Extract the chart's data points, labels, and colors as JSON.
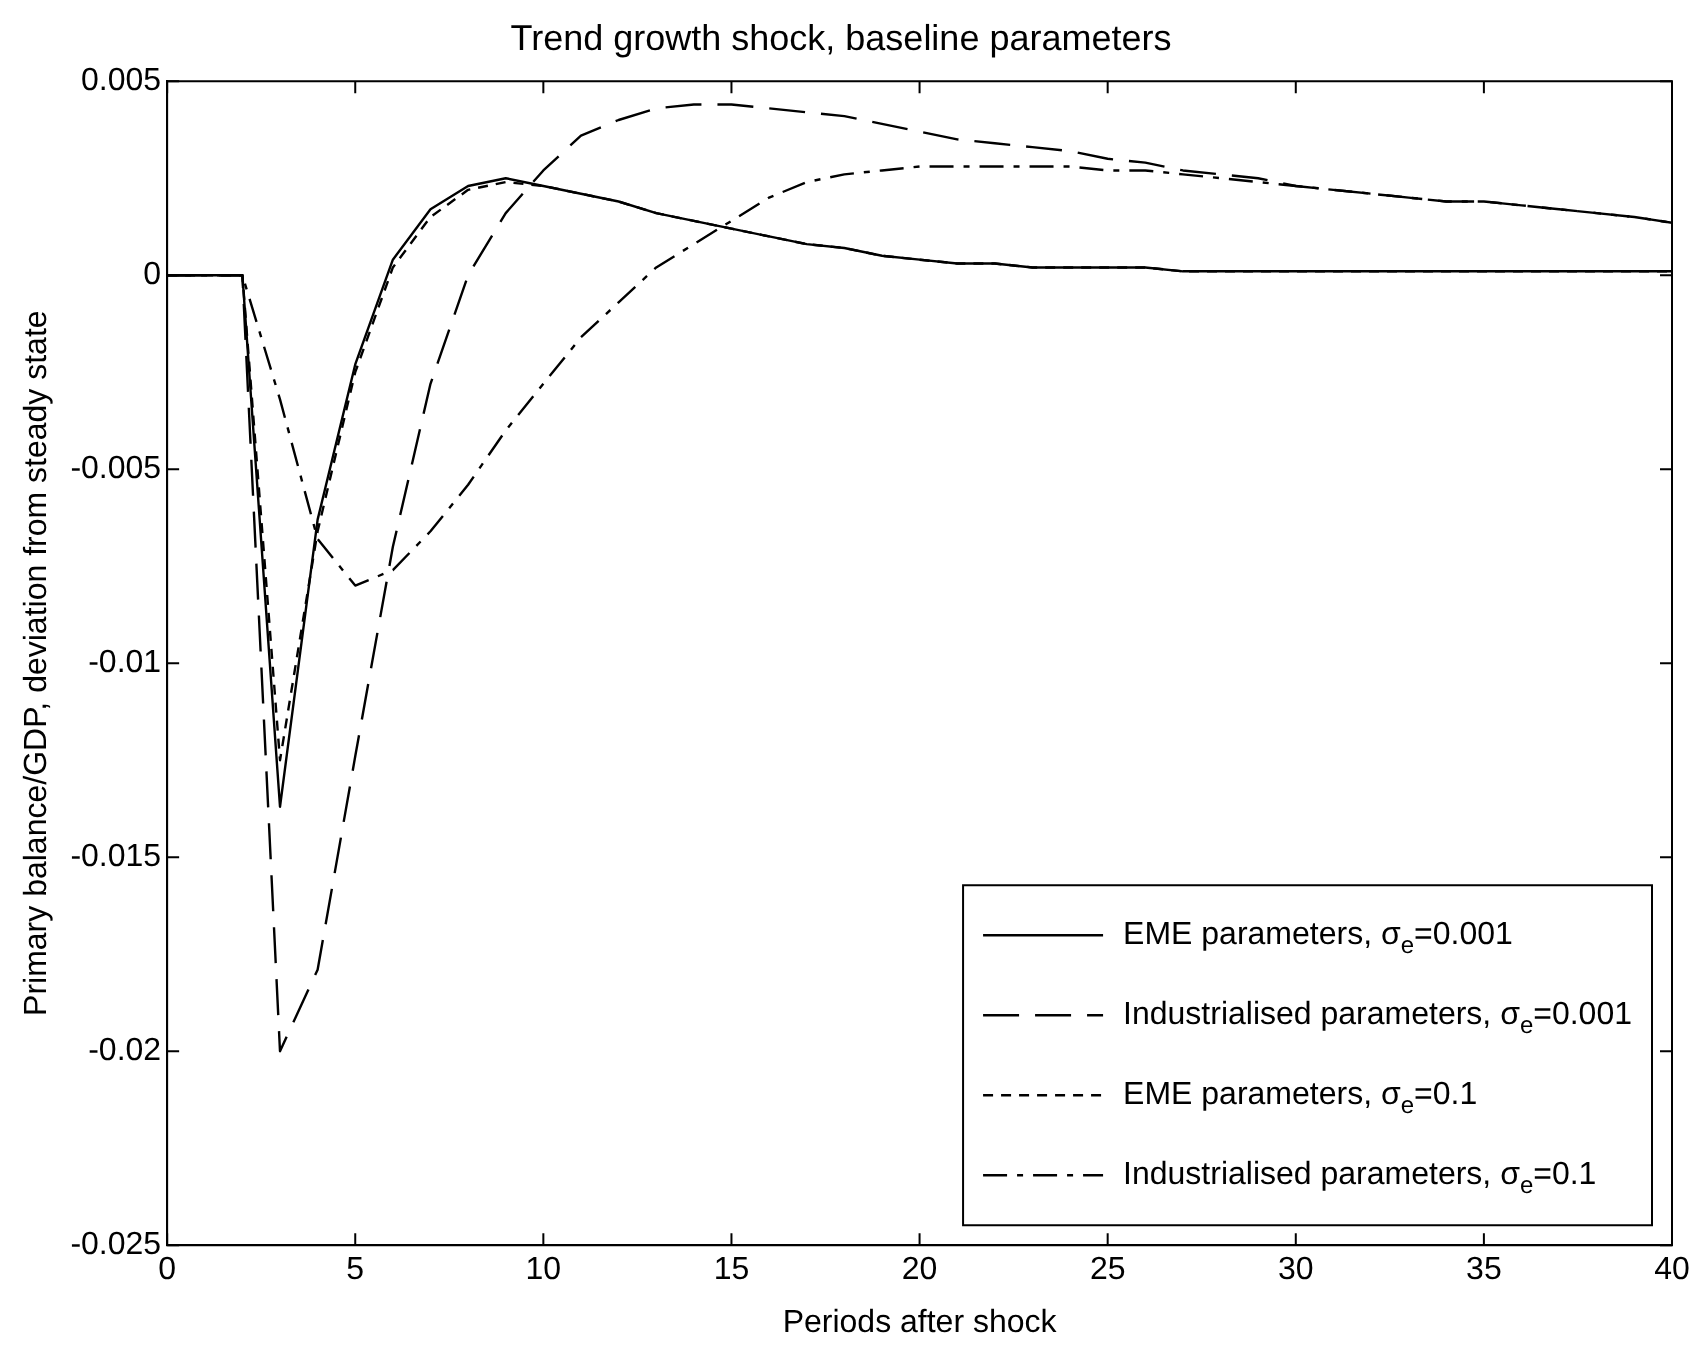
{
  "chart_data": {
    "type": "line",
    "title": "Trend growth shock, baseline parameters",
    "xlabel": "Periods after shock",
    "ylabel": "Primary balance/GDP, deviation from steady state",
    "x": [
      0,
      1,
      2,
      3,
      4,
      5,
      6,
      7,
      8,
      9,
      10,
      11,
      12,
      13,
      14,
      15,
      16,
      17,
      18,
      19,
      20,
      21,
      22,
      23,
      24,
      25,
      26,
      27,
      28,
      29,
      30,
      31,
      32,
      33,
      34,
      35,
      36,
      37,
      38,
      39,
      40
    ],
    "series": [
      {
        "name": "EME parameters, σ$_{e}$=0.001",
        "color": "#000000",
        "line_style": "solid",
        "values": [
          0,
          0,
          0,
          -0.0137,
          -0.0063,
          -0.0023,
          0.0004,
          0.0017,
          0.0023,
          0.0025,
          0.0023,
          0.0021,
          0.0019,
          0.0016,
          0.0014,
          0.0012,
          0.001,
          0.0008,
          0.0007,
          0.0005,
          0.0004,
          0.0003,
          0.0003,
          0.0002,
          0.0002,
          0.0002,
          0.0002,
          0.0001,
          0.0001,
          0.0001,
          0.0001,
          0.0001,
          0.0001,
          0.0001,
          0.0001,
          0.0001,
          0.0001,
          0.0001,
          0.0001,
          0.0001,
          0.0001
        ]
      },
      {
        "name": "Industrialised parameters, σ$_{e}$=0.001",
        "color": "#000000",
        "line_style": "longdash",
        "values": [
          0,
          0,
          0,
          -0.02,
          -0.0179,
          -0.0124,
          -0.007,
          -0.0028,
          0,
          0.0016,
          0.0027,
          0.0036,
          0.004,
          0.0043,
          0.0044,
          0.0044,
          0.0043,
          0.0042,
          0.0041,
          0.0039,
          0.0037,
          0.0035,
          0.0034,
          0.0033,
          0.0032,
          0.003,
          0.0029,
          0.0027,
          0.0026,
          0.0025,
          0.0023,
          0.0022,
          0.0021,
          0.002,
          0.0019,
          0.0019,
          0.0018,
          0.0017,
          0.0016,
          0.0015,
          0.00135
        ]
      },
      {
        "name": "EME parameters, σ$_{e}$=0.1",
        "color": "#000000",
        "line_style": "dashed",
        "values": [
          0,
          0,
          0,
          -0.0125,
          -0.0066,
          -0.0025,
          0.0002,
          0.0015,
          0.0022,
          0.0024,
          0.0023,
          0.0021,
          0.0019,
          0.0016,
          0.0014,
          0.0012,
          0.001,
          0.0008,
          0.0007,
          0.0005,
          0.0004,
          0.0003,
          0.0003,
          0.0002,
          0.0002,
          0.0002,
          0.0002,
          0.0001,
          0.0001,
          0.0001,
          0.0001,
          0.0001,
          0.0001,
          0.0001,
          0.0001,
          0.0001,
          0.0001,
          0.0001,
          0.0001,
          0.0001,
          0.0001
        ]
      },
      {
        "name": "Industrialised parameters, σ$_{e}$=0.1",
        "color": "#000000",
        "line_style": "dashdot",
        "values": [
          0,
          0,
          0,
          -0.0032,
          -0.0068,
          -0.008,
          -0.0076,
          -0.0066,
          -0.0054,
          -0.004,
          -0.0028,
          -0.0016,
          -0.0007,
          0.0002,
          0.0008,
          0.0014,
          0.002,
          0.0024,
          0.0026,
          0.0027,
          0.0028,
          0.0028,
          0.0028,
          0.0028,
          0.0028,
          0.0027,
          0.0027,
          0.0026,
          0.0025,
          0.0024,
          0.0023,
          0.0022,
          0.0021,
          0.002,
          0.0019,
          0.0019,
          0.0018,
          0.0017,
          0.0016,
          0.0015,
          0.00135
        ]
      }
    ],
    "xlim": [
      0,
      40
    ],
    "xticks": [
      0,
      5,
      10,
      15,
      20,
      25,
      30,
      35,
      40
    ],
    "ylim": [
      -0.025,
      0.005
    ],
    "yticks": [
      -0.025,
      -0.02,
      -0.015,
      -0.01,
      -0.005,
      0,
      0.005
    ],
    "grid": false,
    "legend": "bottom right",
    "marker": "none"
  }
}
